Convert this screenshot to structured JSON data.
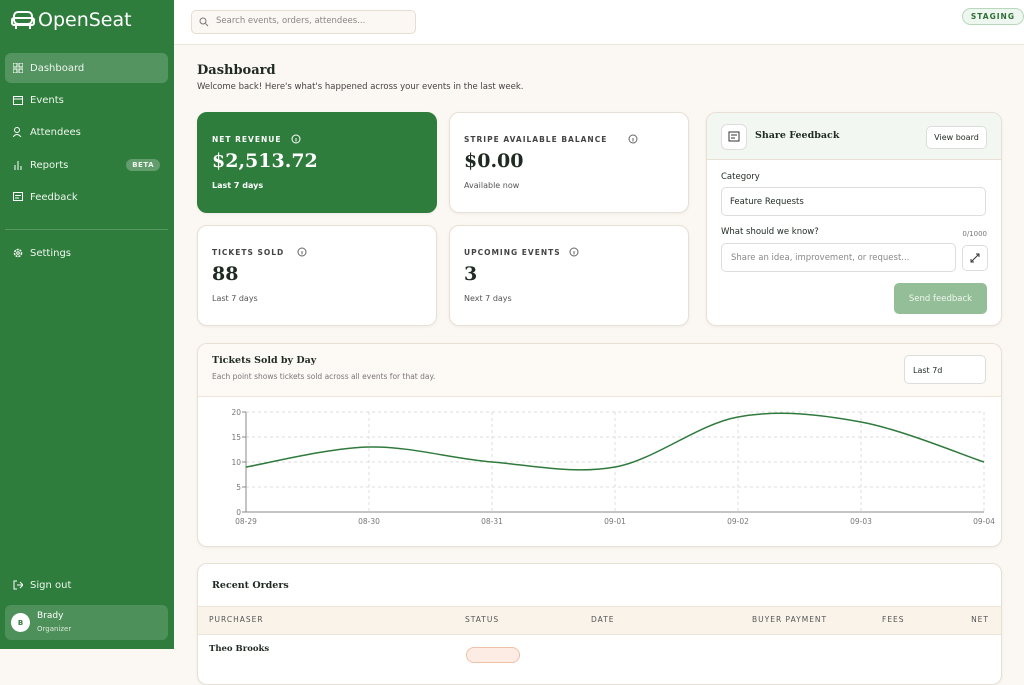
{
  "brand": "OpenSeat",
  "nav": [
    {
      "label": "Dashboard"
    },
    {
      "label": "Events"
    },
    {
      "label": "Attendees"
    },
    {
      "label": "Reports",
      "badge": "BETA"
    },
    {
      "label": "Feedback"
    },
    {
      "label": "Settings"
    }
  ],
  "sign_out": "Sign out",
  "user": {
    "initial": "B",
    "name": "Brady",
    "role": "Organizer"
  },
  "search_placeholder": "Search events, orders, attendees...",
  "env_badge": "STAGING",
  "page": {
    "title": "Dashboard",
    "subtitle": "Welcome back! Here's what's happened across your events in the last week."
  },
  "stats": [
    {
      "label": "NET REVENUE",
      "value": "$2,513.72",
      "note": "Last 7 days"
    },
    {
      "label": "STRIPE AVAILABLE BALANCE",
      "value": "$0.00",
      "note": "Available now"
    },
    {
      "label": "TICKETS SOLD",
      "value": "88",
      "note": "Last 7 days"
    },
    {
      "label": "UPCOMING EVENTS",
      "value": "3",
      "note": "Next 7 days"
    }
  ],
  "feedback": {
    "title": "Share Feedback",
    "view_board": "View board",
    "category_label": "Category",
    "category_value": "Feature Requests",
    "question": "What should we know?",
    "counter": "0/1000",
    "placeholder": "Share an idea, improvement, or request...",
    "submit": "Send feedback"
  },
  "chart_data": {
    "type": "line",
    "title": "Tickets Sold by Day",
    "subtitle": "Each point shows tickets sold across all events for that day.",
    "range": "Last 7d",
    "categories": [
      "08-29",
      "08-30",
      "08-31",
      "09-01",
      "09-02",
      "09-03",
      "09-04"
    ],
    "values": [
      9,
      13,
      10,
      9,
      19,
      18,
      10
    ],
    "color": "#2f7a3c",
    "ylim": [
      0,
      20
    ],
    "yticks": [
      0,
      5,
      10,
      15,
      20
    ],
    "grid": true
  },
  "orders": {
    "title": "Recent Orders",
    "columns": [
      "PURCHASER",
      "STATUS",
      "DATE",
      "BUYER PAYMENT",
      "FEES",
      "NET"
    ],
    "rows": [
      [
        "Theo Brooks"
      ]
    ]
  }
}
